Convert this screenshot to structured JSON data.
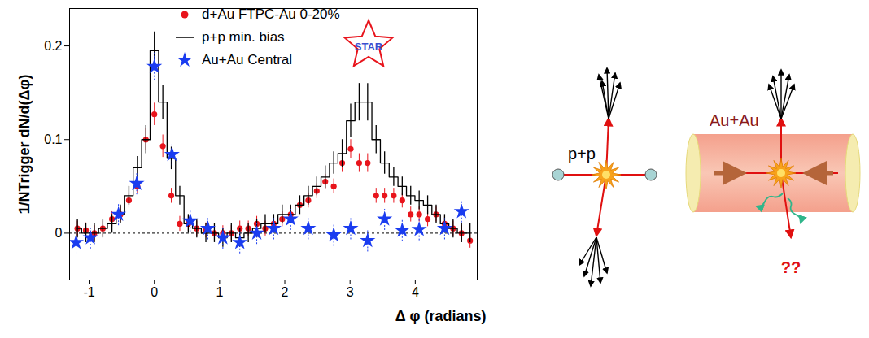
{
  "chart_data": {
    "type": "scatter",
    "x_label": "Δ φ (radians)",
    "y_label": "1/NTrigger dN/d(Δφ)",
    "xlim": [
      -1.3,
      4.95
    ],
    "ylim": [
      -0.05,
      0.24
    ],
    "xticks": [
      -1,
      0,
      1,
      2,
      3,
      4
    ],
    "yticks": [
      0,
      0.1,
      0.2
    ],
    "baseline": 0,
    "legend": "top",
    "annotations": [
      "STAR"
    ],
    "series": [
      {
        "name": "d+Au FTPC-Au 0-20%",
        "type": "scatter",
        "color": "#e8141c",
        "marker": "circle",
        "x": [
          -1.18,
          -1.05,
          -0.92,
          -0.79,
          -0.65,
          -0.52,
          -0.39,
          -0.26,
          -0.13,
          0,
          0.13,
          0.26,
          0.39,
          0.52,
          0.65,
          0.79,
          0.92,
          1.05,
          1.18,
          1.31,
          1.44,
          1.57,
          1.7,
          1.83,
          1.96,
          2.09,
          2.23,
          2.36,
          2.49,
          2.62,
          2.75,
          2.88,
          3.01,
          3.14,
          3.27,
          3.4,
          3.53,
          3.67,
          3.8,
          3.93,
          4.06,
          4.19,
          4.32,
          4.45,
          4.58,
          4.71,
          4.84
        ],
        "values": [
          0.005,
          0.003,
          0,
          0.005,
          0.015,
          0.02,
          0.035,
          0.05,
          0.1,
          0.127,
          0.093,
          0.04,
          0.01,
          0.01,
          0.005,
          0.003,
          0,
          0,
          0,
          0.005,
          0.005,
          0.01,
          0.005,
          0.01,
          0.015,
          0.02,
          0.03,
          0.035,
          0.045,
          0.055,
          0.05,
          0.075,
          0.09,
          0.075,
          0.075,
          0.04,
          0.04,
          0.04,
          0.035,
          0.02,
          0.02,
          0.015,
          0.02,
          0.01,
          0.005,
          0,
          -0.008
        ],
        "errors": [
          0.008,
          0.008,
          0.008,
          0.008,
          0.008,
          0.008,
          0.008,
          0.008,
          0.012,
          0.012,
          0.012,
          0.008,
          0.008,
          0.008,
          0.008,
          0.008,
          0.008,
          0.008,
          0.008,
          0.008,
          0.008,
          0.008,
          0.008,
          0.008,
          0.008,
          0.008,
          0.008,
          0.008,
          0.008,
          0.008,
          0.008,
          0.01,
          0.01,
          0.01,
          0.01,
          0.008,
          0.008,
          0.008,
          0.008,
          0.008,
          0.008,
          0.008,
          0.008,
          0.008,
          0.008,
          0.008,
          0.008
        ]
      },
      {
        "name": "p+p min. bias",
        "type": "step",
        "color": "#000000",
        "line_style": "solid",
        "x": [
          -1.18,
          -1.05,
          -0.92,
          -0.79,
          -0.65,
          -0.52,
          -0.39,
          -0.26,
          -0.13,
          0,
          0.13,
          0.26,
          0.39,
          0.52,
          0.65,
          0.79,
          0.92,
          1.05,
          1.18,
          1.31,
          1.44,
          1.57,
          1.7,
          1.83,
          1.96,
          2.09,
          2.23,
          2.36,
          2.49,
          2.62,
          2.75,
          2.88,
          3.01,
          3.14,
          3.27,
          3.4,
          3.53,
          3.67,
          3.8,
          3.93,
          4.06,
          4.19,
          4.32,
          4.45,
          4.58,
          4.71,
          4.84
        ],
        "values": [
          0.005,
          0,
          0,
          0.005,
          0.01,
          0.02,
          0.04,
          0.07,
          0.1,
          0.195,
          0.14,
          0.08,
          0.04,
          0.01,
          0.005,
          0,
          0,
          -0.005,
          0,
          -0.005,
          0,
          0.005,
          0.01,
          0.01,
          0.02,
          0.02,
          0.03,
          0.04,
          0.05,
          0.06,
          0.075,
          0.085,
          0.12,
          0.14,
          0.14,
          0.1,
          0.075,
          0.06,
          0.05,
          0.04,
          0.035,
          0.03,
          0.02,
          0.01,
          0.005,
          0,
          0
        ],
        "errors": [
          0.01,
          0.01,
          0.01,
          0.01,
          0.01,
          0.01,
          0.01,
          0.012,
          0.015,
          0.02,
          0.018,
          0.012,
          0.01,
          0.01,
          0.01,
          0.01,
          0.01,
          0.01,
          0.01,
          0.01,
          0.01,
          0.01,
          0.01,
          0.01,
          0.01,
          0.01,
          0.01,
          0.01,
          0.01,
          0.012,
          0.012,
          0.015,
          0.018,
          0.02,
          0.02,
          0.015,
          0.012,
          0.01,
          0.01,
          0.01,
          0.01,
          0.01,
          0.01,
          0.01,
          0.01,
          0.01,
          0.01
        ]
      },
      {
        "name": "Au+Au Central",
        "type": "scatter",
        "color": "#1a3cf0",
        "marker": "star",
        "x": [
          -1.2,
          -0.98,
          -0.55,
          -0.27,
          0,
          0.27,
          0.55,
          0.82,
          1.05,
          1.31,
          1.57,
          1.83,
          2.09,
          2.36,
          2.75,
          3.01,
          3.27,
          3.53,
          3.8,
          4.06,
          4.45,
          4.71
        ],
        "values": [
          -0.01,
          -0.005,
          0.02,
          0.053,
          0.178,
          0.084,
          0.013,
          0.005,
          -0.005,
          -0.01,
          0,
          0.005,
          0.015,
          0.005,
          -0.002,
          0.005,
          -0.008,
          0.015,
          0.003,
          0.004,
          0.005,
          0.023
        ],
        "errors": [
          0.012,
          0.012,
          0.012,
          0.012,
          0.015,
          0.012,
          0.012,
          0.012,
          0.012,
          0.012,
          0.012,
          0.012,
          0.012,
          0.012,
          0.012,
          0.012,
          0.012,
          0.012,
          0.012,
          0.012,
          0.012,
          0.012
        ]
      }
    ]
  },
  "diagram": {
    "panels": [
      {
        "label": "p+p"
      },
      {
        "label": "Au+Au",
        "annotation": "??"
      }
    ]
  }
}
